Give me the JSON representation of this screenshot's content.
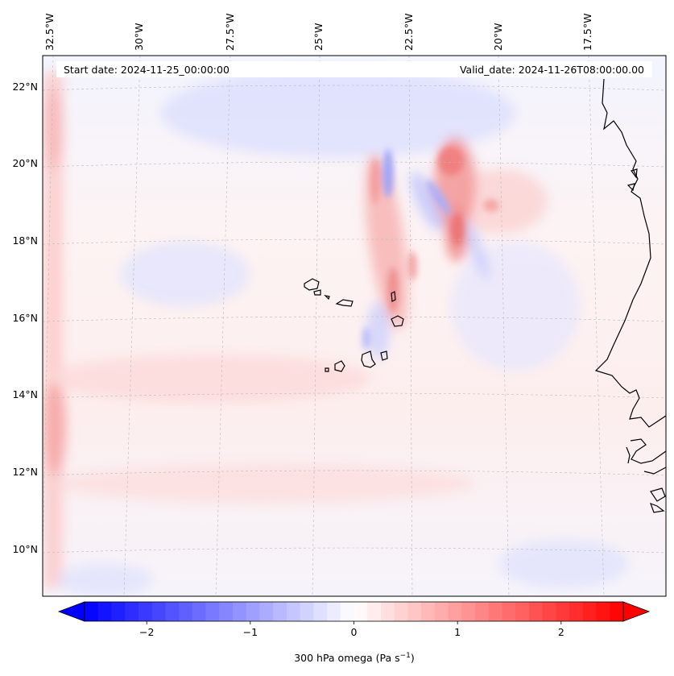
{
  "map": {
    "start_date": "Start date: 2024-11-25_00:00:00",
    "valid_date": "Valid_date: 2024-11-26T08:00:00.00",
    "lon_labels": [
      "32.5°W",
      "30°W",
      "27.5°W",
      "25°W",
      "22.5°W",
      "20°W",
      "17.5°W"
    ],
    "lat_labels": [
      "22°N",
      "20°N",
      "18°N",
      "16°N",
      "14°N",
      "12°N",
      "10°N"
    ]
  },
  "colorbar": {
    "label_main": "300 hPa omega (Pa s",
    "label_exp": "−1",
    "label_end": ")",
    "ticks": [
      "−2",
      "−1",
      "0",
      "1",
      "2"
    ],
    "tick_values": [
      -2,
      -1,
      0,
      1,
      2
    ],
    "range": [
      -2.6,
      2.6
    ],
    "colormap": "bwr",
    "color_min": "#0000ff",
    "color_mid": "#ffffff",
    "color_max": "#ff0000"
  },
  "colors": {
    "coastline": "#000000",
    "gridline": "#bbbbbb",
    "frame": "#000000"
  }
}
